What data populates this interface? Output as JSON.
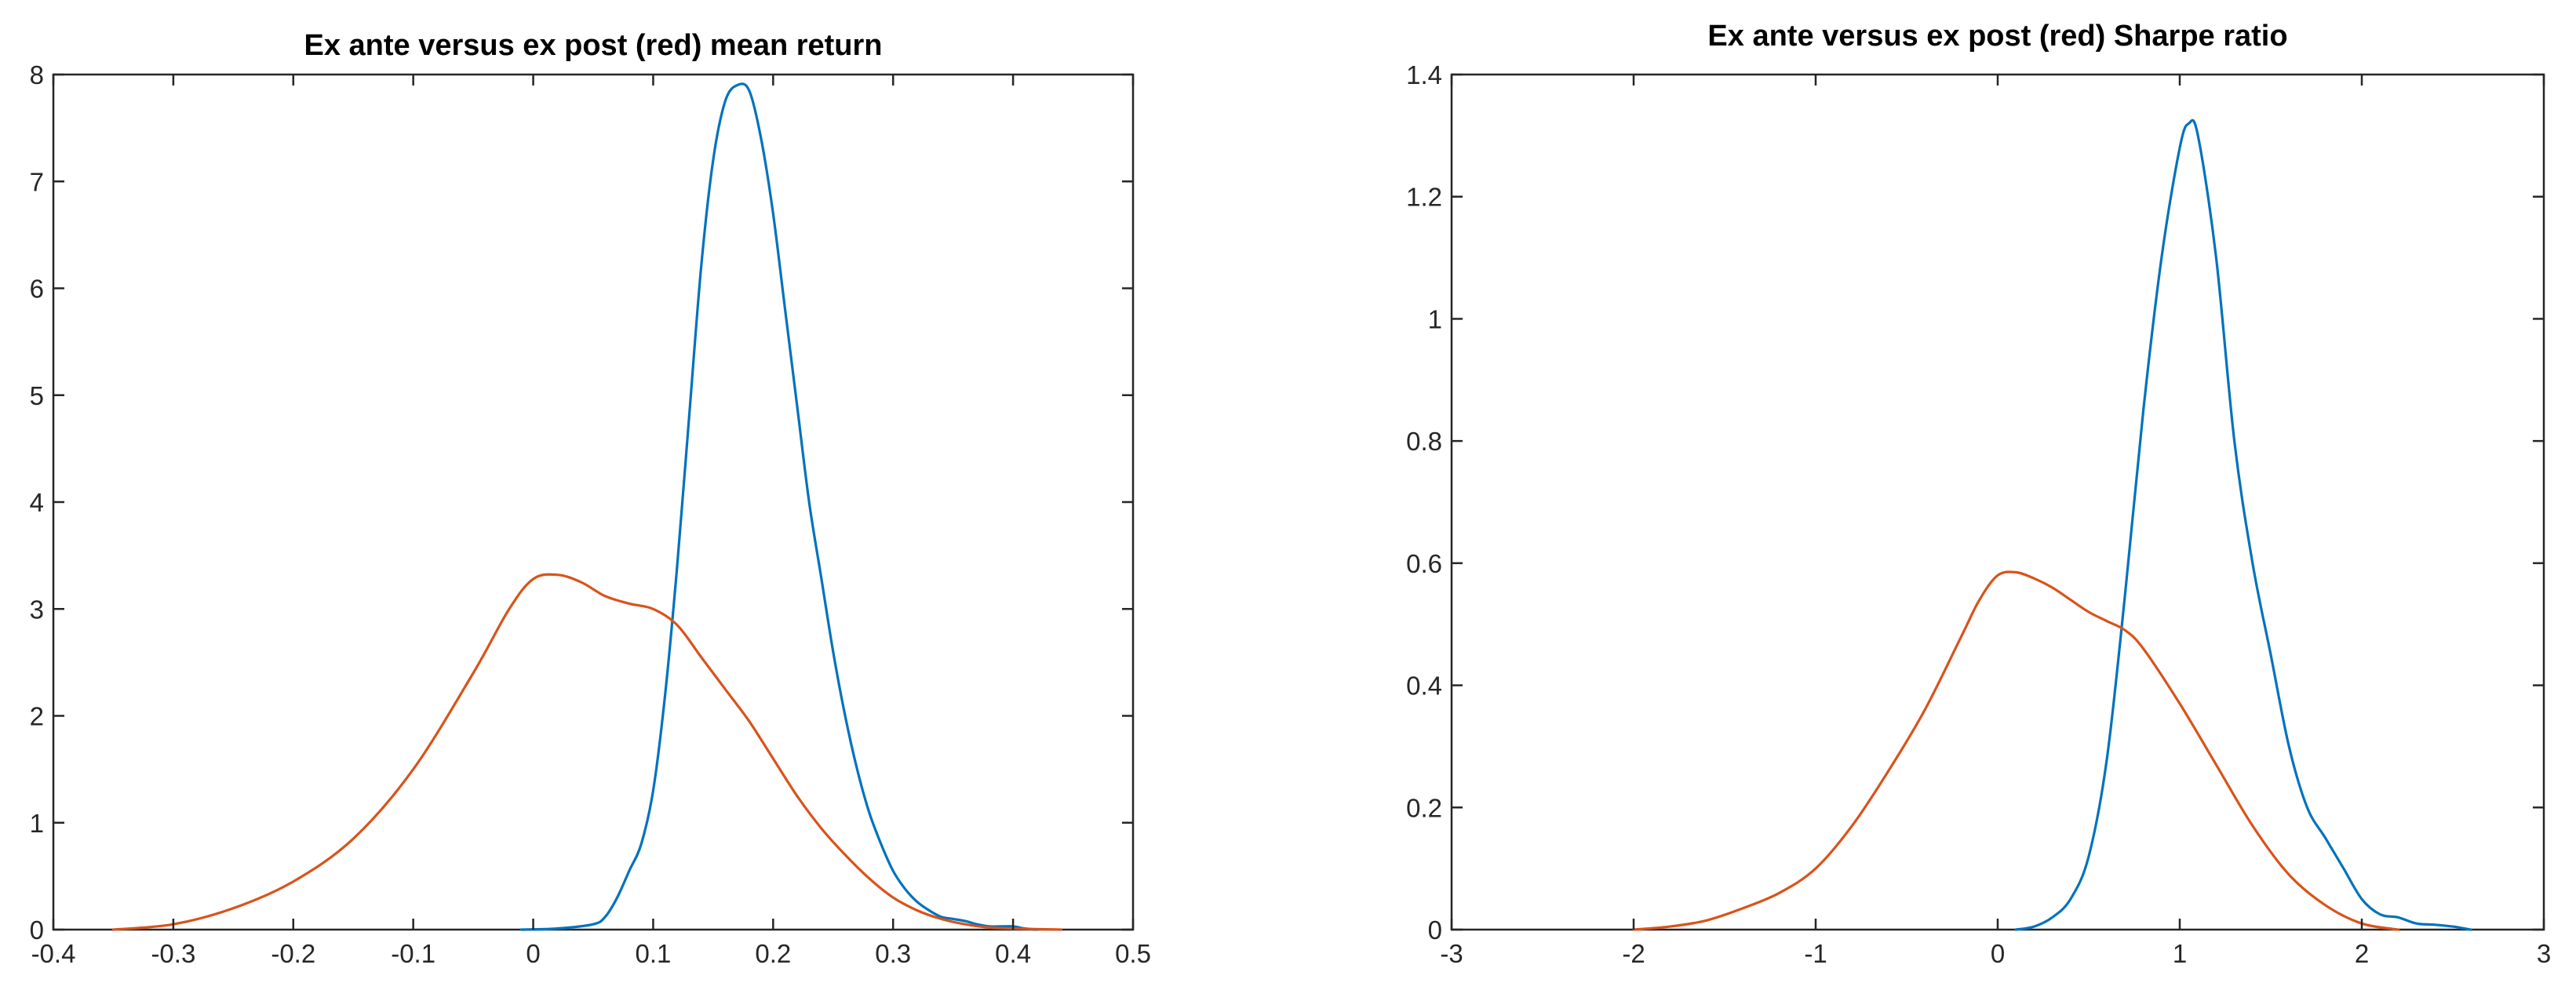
{
  "chart_data": [
    {
      "type": "line",
      "title": "Ex ante versus ex post (red) mean return",
      "xlabel": "",
      "ylabel": "",
      "xlim": [
        -0.4,
        0.5
      ],
      "ylim": [
        0,
        8
      ],
      "xticks": [
        -0.4,
        -0.3,
        -0.2,
        -0.1,
        0,
        0.1,
        0.2,
        0.3,
        0.4,
        0.5
      ],
      "xtick_labels": [
        "-0.4",
        "-0.3",
        "-0.2",
        "-0.1",
        "0",
        "0.1",
        "0.2",
        "0.3",
        "0.4",
        "0.5"
      ],
      "yticks": [
        0,
        1,
        2,
        3,
        4,
        5,
        6,
        7,
        8
      ],
      "ytick_labels": [
        "0",
        "1",
        "2",
        "3",
        "4",
        "5",
        "6",
        "7",
        "8"
      ],
      "grid": false,
      "series": [
        {
          "color": "#0072BD",
          "x": [
            -0.01,
            0.02,
            0.05,
            0.06,
            0.07,
            0.08,
            0.09,
            0.1,
            0.11,
            0.12,
            0.13,
            0.14,
            0.15,
            0.16,
            0.17,
            0.18,
            0.19,
            0.2,
            0.21,
            0.22,
            0.23,
            0.24,
            0.25,
            0.26,
            0.27,
            0.28,
            0.29,
            0.3,
            0.31,
            0.32,
            0.33,
            0.34,
            0.35,
            0.36,
            0.37,
            0.38,
            0.39,
            0.4,
            0.41,
            0.42
          ],
          "y": [
            0,
            0.01,
            0.05,
            0.12,
            0.3,
            0.55,
            0.8,
            1.3,
            2.2,
            3.4,
            4.8,
            6.2,
            7.2,
            7.75,
            7.9,
            7.85,
            7.4,
            6.7,
            5.8,
            4.9,
            4.0,
            3.3,
            2.6,
            2.0,
            1.5,
            1.1,
            0.8,
            0.55,
            0.38,
            0.26,
            0.18,
            0.12,
            0.1,
            0.08,
            0.05,
            0.03,
            0.03,
            0.03,
            0.01,
            0
          ]
        },
        {
          "color": "#D95319",
          "x": [
            -0.35,
            -0.3,
            -0.25,
            -0.2,
            -0.15,
            -0.1,
            -0.05,
            -0.02,
            0,
            0.02,
            0.04,
            0.06,
            0.08,
            0.1,
            0.12,
            0.14,
            0.16,
            0.18,
            0.2,
            0.22,
            0.24,
            0.26,
            0.28,
            0.3,
            0.32,
            0.34,
            0.36,
            0.38,
            0.4,
            0.44
          ],
          "y": [
            0,
            0.05,
            0.2,
            0.45,
            0.85,
            1.5,
            2.4,
            3.0,
            3.28,
            3.32,
            3.25,
            3.12,
            3.05,
            3.0,
            2.85,
            2.55,
            2.25,
            1.95,
            1.6,
            1.25,
            0.95,
            0.7,
            0.48,
            0.3,
            0.18,
            0.1,
            0.05,
            0.02,
            0.01,
            0
          ]
        }
      ]
    },
    {
      "type": "line",
      "title": "Ex ante versus ex post (red) Sharpe ratio",
      "xlabel": "",
      "ylabel": "",
      "xlim": [
        -3,
        3
      ],
      "ylim": [
        0,
        1.4
      ],
      "xticks": [
        -3,
        -2,
        -1,
        0,
        1,
        2,
        3
      ],
      "xtick_labels": [
        "-3",
        "-2",
        "-1",
        "0",
        "1",
        "2",
        "3"
      ],
      "yticks": [
        0,
        0.2,
        0.4,
        0.6,
        0.8,
        1,
        1.2,
        1.4
      ],
      "ytick_labels": [
        "0",
        "0.2",
        "0.4",
        "0.6",
        "0.8",
        "1",
        "1.2",
        "1.4"
      ],
      "grid": false,
      "series": [
        {
          "color": "#0072BD",
          "x": [
            0.1,
            0.2,
            0.3,
            0.4,
            0.5,
            0.6,
            0.7,
            0.8,
            0.9,
            1.0,
            1.05,
            1.1,
            1.2,
            1.3,
            1.4,
            1.5,
            1.6,
            1.7,
            1.8,
            1.9,
            2.0,
            2.1,
            2.2,
            2.3,
            2.4,
            2.5,
            2.6
          ],
          "y": [
            0,
            0.005,
            0.02,
            0.05,
            0.12,
            0.28,
            0.55,
            0.85,
            1.1,
            1.28,
            1.32,
            1.3,
            1.1,
            0.8,
            0.6,
            0.45,
            0.3,
            0.2,
            0.15,
            0.1,
            0.05,
            0.025,
            0.02,
            0.01,
            0.008,
            0.005,
            0
          ]
        },
        {
          "color": "#D95319",
          "x": [
            -2,
            -1.8,
            -1.6,
            -1.4,
            -1.2,
            -1.0,
            -0.8,
            -0.6,
            -0.4,
            -0.2,
            -0.1,
            0,
            0.1,
            0.2,
            0.3,
            0.4,
            0.5,
            0.6,
            0.7,
            0.8,
            1.0,
            1.2,
            1.4,
            1.6,
            1.8,
            2.0,
            2.2
          ],
          "y": [
            0,
            0.005,
            0.015,
            0.035,
            0.06,
            0.1,
            0.17,
            0.26,
            0.36,
            0.48,
            0.54,
            0.58,
            0.585,
            0.575,
            0.56,
            0.54,
            0.52,
            0.505,
            0.49,
            0.46,
            0.37,
            0.27,
            0.17,
            0.09,
            0.04,
            0.01,
            0
          ]
        }
      ]
    }
  ]
}
